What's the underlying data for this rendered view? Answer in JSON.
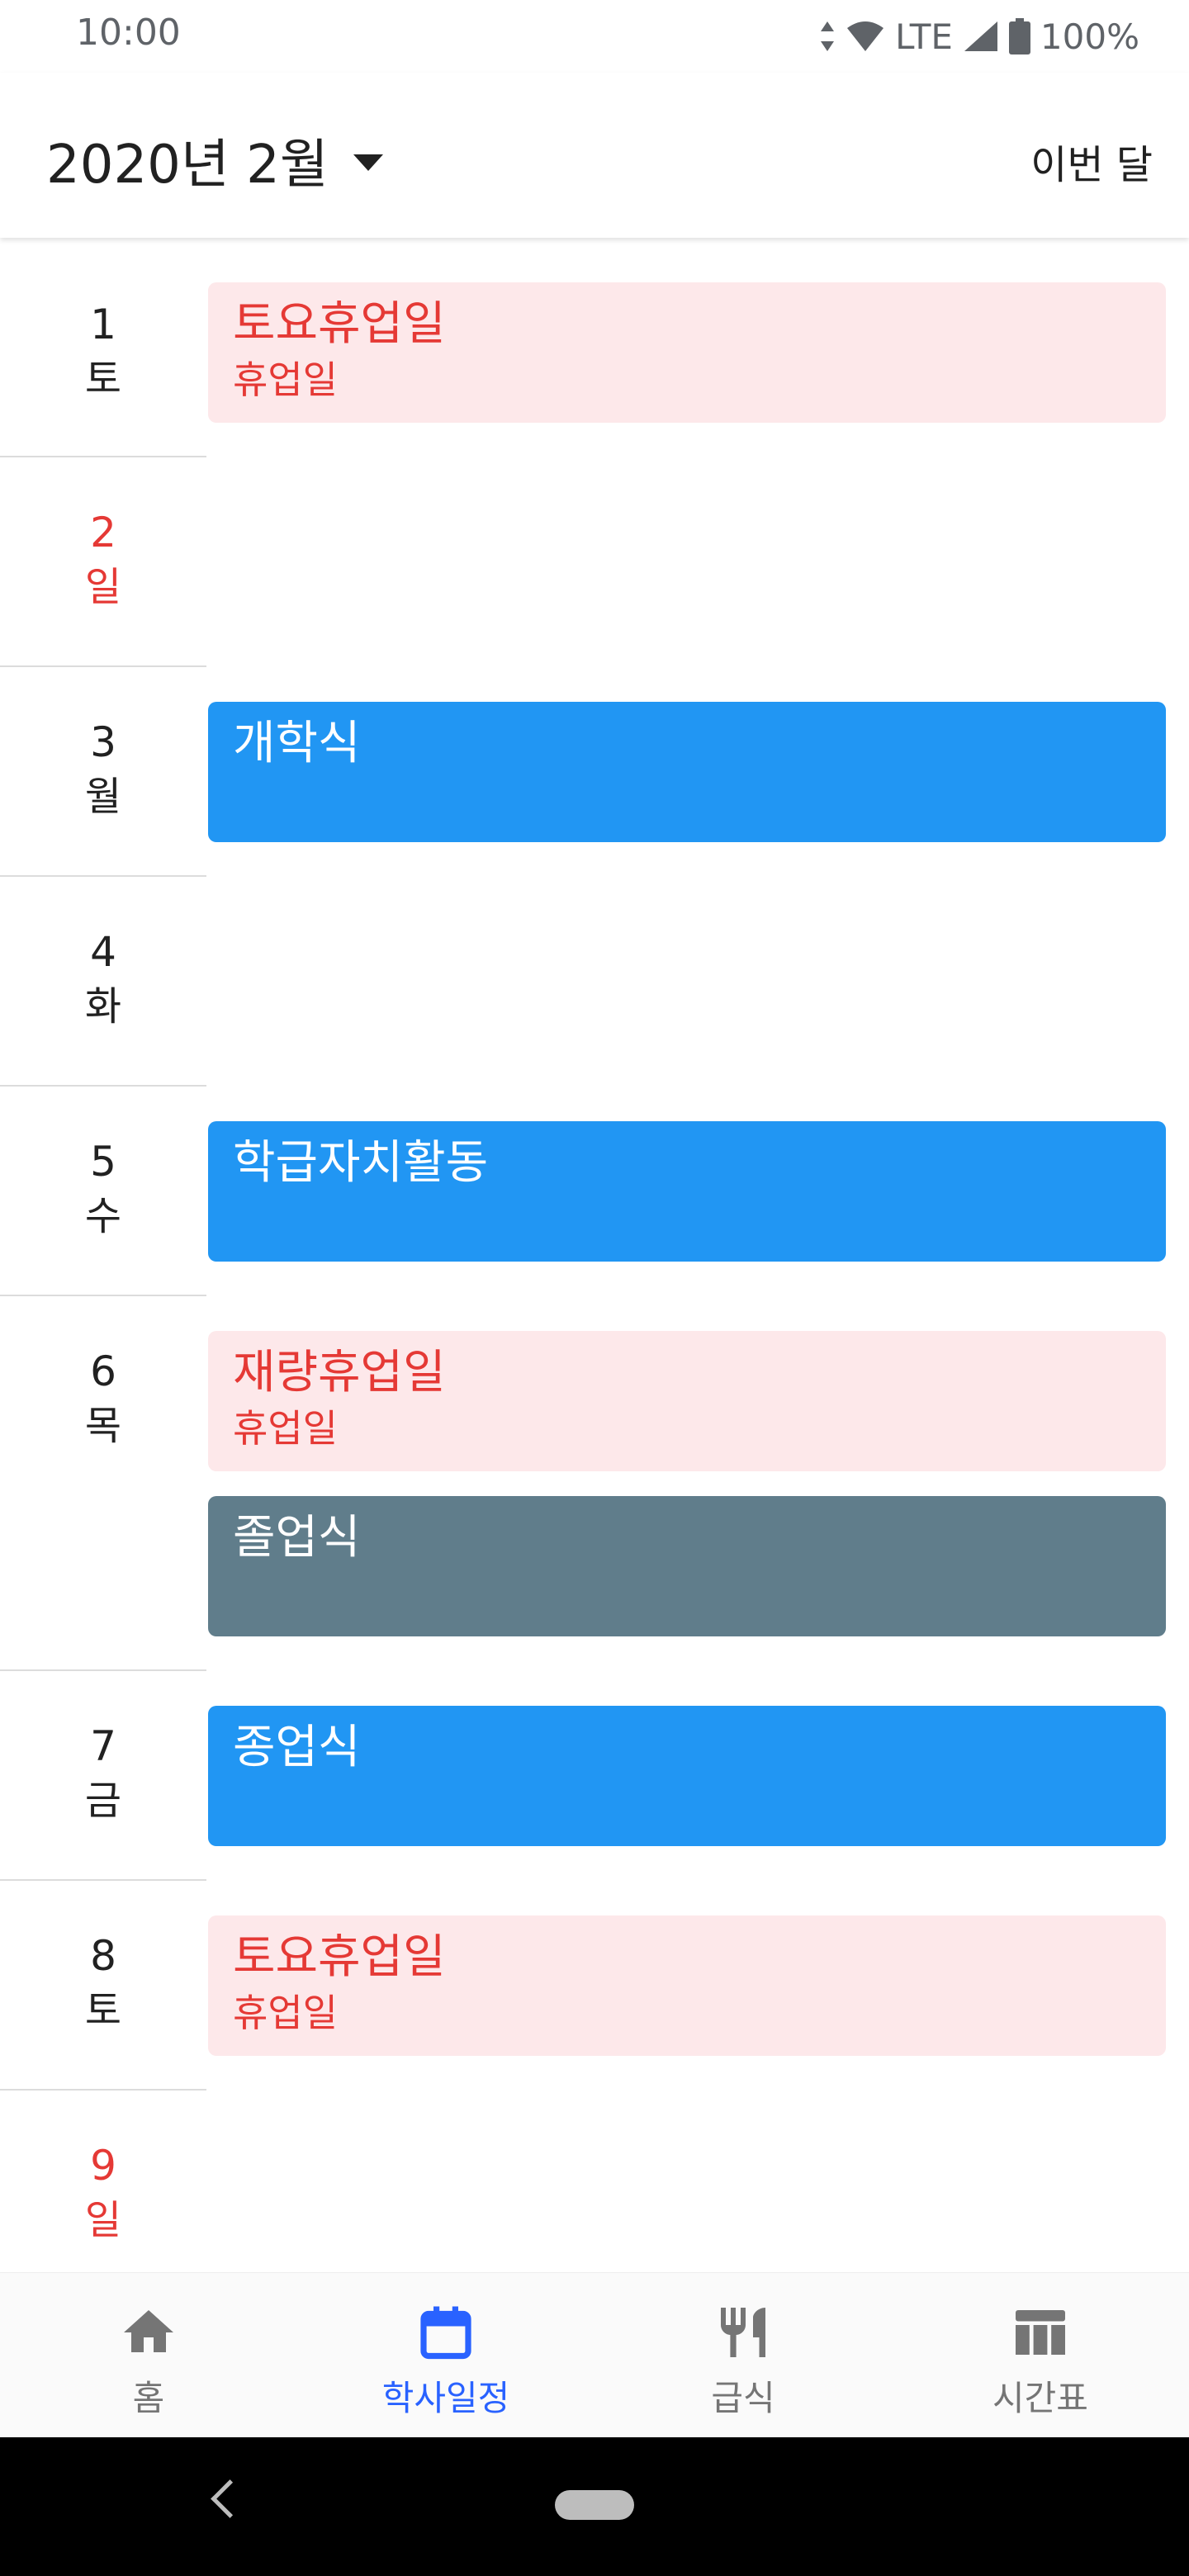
{
  "status_bar": {
    "time": "10:00",
    "network": "LTE",
    "battery": "100%",
    "icons": [
      "data-arrows-icon",
      "wifi-icon",
      "signal-icon",
      "battery-icon"
    ]
  },
  "header": {
    "month": "2020년 2월",
    "this_month": "이번 달",
    "icon": "dropdown-caret-icon"
  },
  "days": [
    {
      "day": "1",
      "weekday": "토"
    },
    {
      "day": "2",
      "weekday": "일"
    },
    {
      "day": "3",
      "weekday": "월"
    },
    {
      "day": "4",
      "weekday": "화"
    },
    {
      "day": "5",
      "weekday": "수"
    },
    {
      "day": "6",
      "weekday": "목"
    },
    {
      "day": "7",
      "weekday": "금"
    },
    {
      "day": "8",
      "weekday": "토"
    },
    {
      "day": "9",
      "weekday": "일"
    }
  ],
  "events": [
    {
      "title": "토요휴업일",
      "subtitle": "휴업일"
    },
    {
      "title": "개학식"
    },
    {
      "title": "학급자치활동"
    },
    {
      "title": "재량휴업일",
      "subtitle": "휴업일"
    },
    {
      "title": "졸업식"
    },
    {
      "title": "종업식"
    },
    {
      "title": "토요휴업일",
      "subtitle": "휴업일"
    }
  ],
  "nav": [
    {
      "label": "홈",
      "icon": "home-icon"
    },
    {
      "label": "학사일정",
      "icon": "calendar-icon",
      "active": true
    },
    {
      "label": "급식",
      "icon": "utensils-icon"
    },
    {
      "label": "시간표",
      "icon": "timetable-icon"
    }
  ],
  "colors": {
    "holiday_bg": "#fde8ea",
    "holiday_text": "#e53935",
    "event_blue": "#2196f3",
    "event_grey": "#607d8b",
    "active_nav": "#2962ff",
    "sunday": "#e53935"
  }
}
